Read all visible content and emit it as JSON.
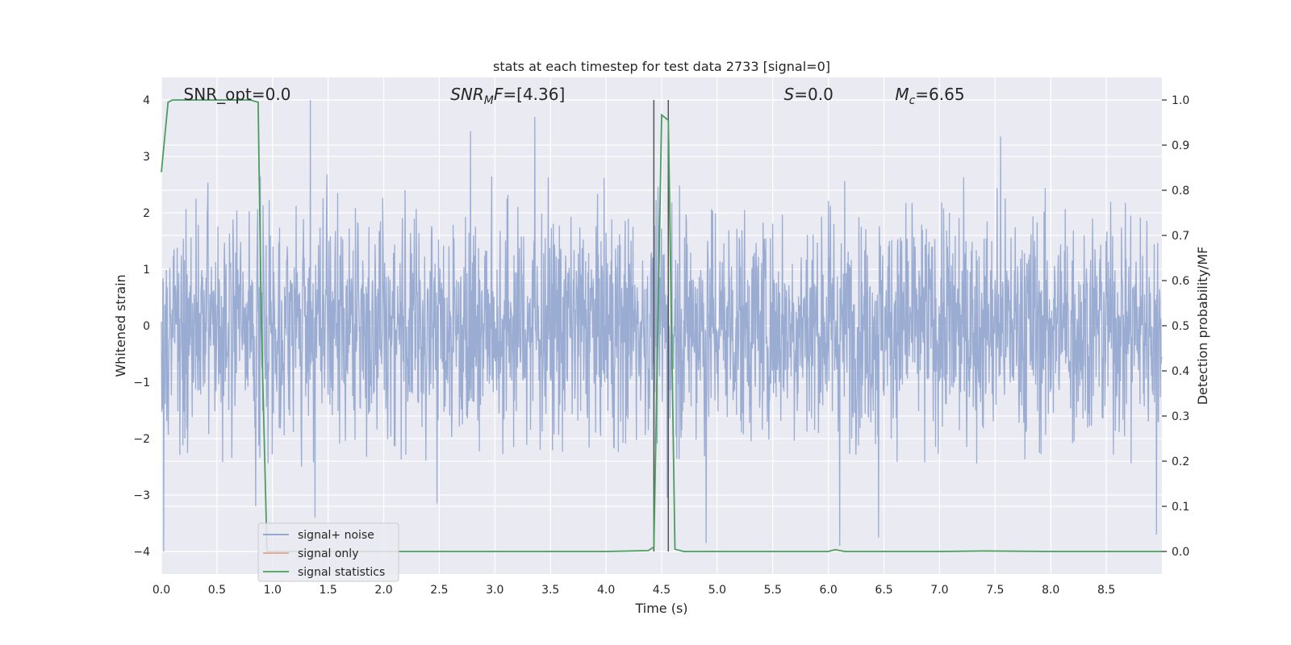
{
  "chart_data": {
    "type": "line",
    "title": "stats at each timestep for test data 2733 [signal=0]",
    "xlabel": "Time (s)",
    "ylabel": "Whitened strain",
    "y2label": "Detection probability/MF",
    "xlim": [
      0.0,
      9.0
    ],
    "ylim": [
      -4.4,
      4.4
    ],
    "y2lim": [
      -0.05,
      1.05
    ],
    "xticks": [
      0.0,
      0.5,
      1.0,
      1.5,
      2.0,
      2.5,
      3.0,
      3.5,
      4.0,
      4.5,
      5.0,
      5.5,
      6.0,
      6.5,
      7.0,
      7.5,
      8.0,
      8.5
    ],
    "xtick_labels": [
      "0.0",
      "0.5",
      "1.0",
      "1.5",
      "2.0",
      "2.5",
      "3.0",
      "3.5",
      "4.0",
      "4.5",
      "5.0",
      "5.5",
      "6.0",
      "6.5",
      "7.0",
      "7.5",
      "8.0",
      "8.5"
    ],
    "yticks": [
      -4,
      -3,
      -2,
      -1,
      0,
      1,
      2,
      3,
      4
    ],
    "ytick_labels": [
      "−4",
      "−3",
      "−2",
      "−1",
      "0",
      "1",
      "2",
      "3",
      "4"
    ],
    "y2ticks": [
      0.0,
      0.1,
      0.2,
      0.3,
      0.4,
      0.5,
      0.6,
      0.7,
      0.8,
      0.9,
      1.0
    ],
    "y2tick_labels": [
      "0.0",
      "0.1",
      "0.2",
      "0.3",
      "0.4",
      "0.5",
      "0.6",
      "0.7",
      "0.8",
      "0.9",
      "1.0"
    ],
    "grid": true,
    "annotations": [
      {
        "kind": "plain",
        "text": "SNR_opt=0.0",
        "x": 0.2
      },
      {
        "kind": "snrmf",
        "main": "SNR",
        "sub": "M",
        "rest": "F=[4.36]",
        "x": 2.6
      },
      {
        "kind": "italic",
        "main": "S",
        "rest": "=0.0",
        "x": 5.6
      },
      {
        "kind": "mc",
        "main": "M",
        "sub": "c",
        "rest": "=6.65",
        "x": 6.6
      }
    ],
    "vlines": [
      4.43,
      4.56
    ],
    "legend": {
      "position": "lower-left",
      "entries": [
        {
          "label": "signal+ noise",
          "color": "#8da0cb"
        },
        {
          "label": "signal only",
          "color": "#e5a088"
        },
        {
          "label": "signal statistics",
          "color": "#4a9e5c"
        }
      ]
    },
    "series": [
      {
        "name": "signal+ noise",
        "axis": "left",
        "color": "#92a6cf",
        "kind": "noise",
        "x_range": [
          0.0,
          9.0
        ],
        "typical_range": [
          -2.5,
          2.7
        ],
        "peaks": [
          {
            "x": 0.02,
            "y": -4.0
          },
          {
            "x": 1.34,
            "y": 4.0
          },
          {
            "x": 0.85,
            "y": -3.2
          },
          {
            "x": 1.38,
            "y": -3.4
          },
          {
            "x": 2.48,
            "y": -3.15
          },
          {
            "x": 3.36,
            "y": 3.7
          },
          {
            "x": 4.9,
            "y": -3.85
          },
          {
            "x": 6.1,
            "y": -3.9
          },
          {
            "x": 6.45,
            "y": -3.75
          },
          {
            "x": 7.55,
            "y": 3.35
          },
          {
            "x": 8.95,
            "y": -3.7
          },
          {
            "x": 2.78,
            "y": 3.45
          },
          {
            "x": 4.55,
            "y": -3.05
          }
        ]
      },
      {
        "name": "signal statistics",
        "axis": "right",
        "color": "#4a9e5c",
        "x": [
          0.0,
          0.06,
          0.1,
          0.2,
          0.4,
          0.6,
          0.8,
          0.87,
          0.9,
          0.95,
          1.0,
          1.5,
          2.0,
          3.0,
          4.0,
          4.38,
          4.43,
          4.5,
          4.56,
          4.62,
          4.7,
          5.0,
          5.5,
          6.0,
          6.06,
          6.15,
          7.0,
          7.4,
          8.0,
          9.0
        ],
        "values": [
          0.84,
          0.995,
          1.0,
          1.0,
          1.0,
          1.0,
          1.0,
          0.995,
          0.5,
          0.0,
          0.0,
          0.0,
          0.0,
          0.0,
          0.0,
          0.002,
          0.01,
          0.967,
          0.955,
          0.005,
          0.0,
          0.0,
          0.0,
          0.0,
          0.004,
          0.0,
          0.0,
          0.001,
          0.0,
          0.0
        ]
      }
    ]
  }
}
